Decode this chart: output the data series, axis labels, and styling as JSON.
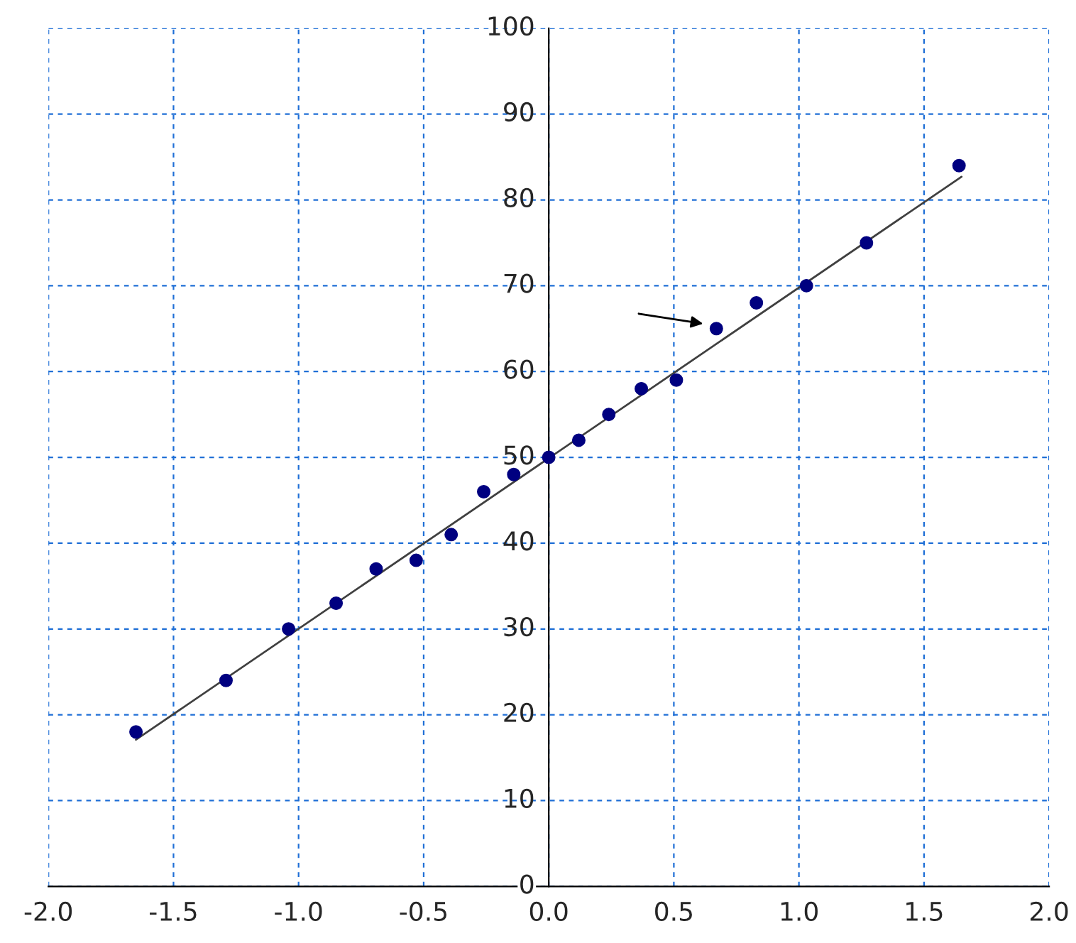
{
  "chart_data": {
    "type": "scatter",
    "xlim": [
      -2.0,
      2.0
    ],
    "xticks": [
      {
        "value": -2.0,
        "label": "-2.0"
      },
      {
        "value": -1.5,
        "label": "-1.5"
      },
      {
        "value": -1.0,
        "label": "-1.0"
      },
      {
        "value": -0.5,
        "label": "-0.5"
      },
      {
        "value": 0.0,
        "label": "0.0"
      },
      {
        "value": 0.5,
        "label": "0.5"
      },
      {
        "value": 1.0,
        "label": "1.0"
      },
      {
        "value": 1.5,
        "label": "1.5"
      },
      {
        "value": 2.0,
        "label": "2.0"
      }
    ],
    "ylim": [
      0,
      100
    ],
    "yticks": [
      0,
      10,
      20,
      30,
      40,
      50,
      60,
      70,
      80,
      90,
      100
    ],
    "grid": true,
    "series": [
      {
        "marker": "circle",
        "color": "#000080",
        "x": [
          -1.65,
          -1.29,
          -1.04,
          -0.85,
          -0.69,
          -0.53,
          -0.39,
          -0.26,
          -0.14,
          0.0,
          0.12,
          0.24,
          0.37,
          0.51,
          0.67,
          0.83,
          1.03,
          1.27,
          1.64
        ],
        "values": [
          18,
          24,
          30,
          33,
          37,
          38,
          41,
          46,
          48,
          50,
          52,
          55,
          58,
          59,
          65,
          68,
          70,
          75,
          84
        ]
      },
      {
        "type": "line",
        "marker": "none",
        "color": "#404040",
        "line_style": "solid",
        "x": [
          -1.65,
          1.65
        ],
        "values": [
          17.1,
          82.7
        ]
      }
    ]
  }
}
